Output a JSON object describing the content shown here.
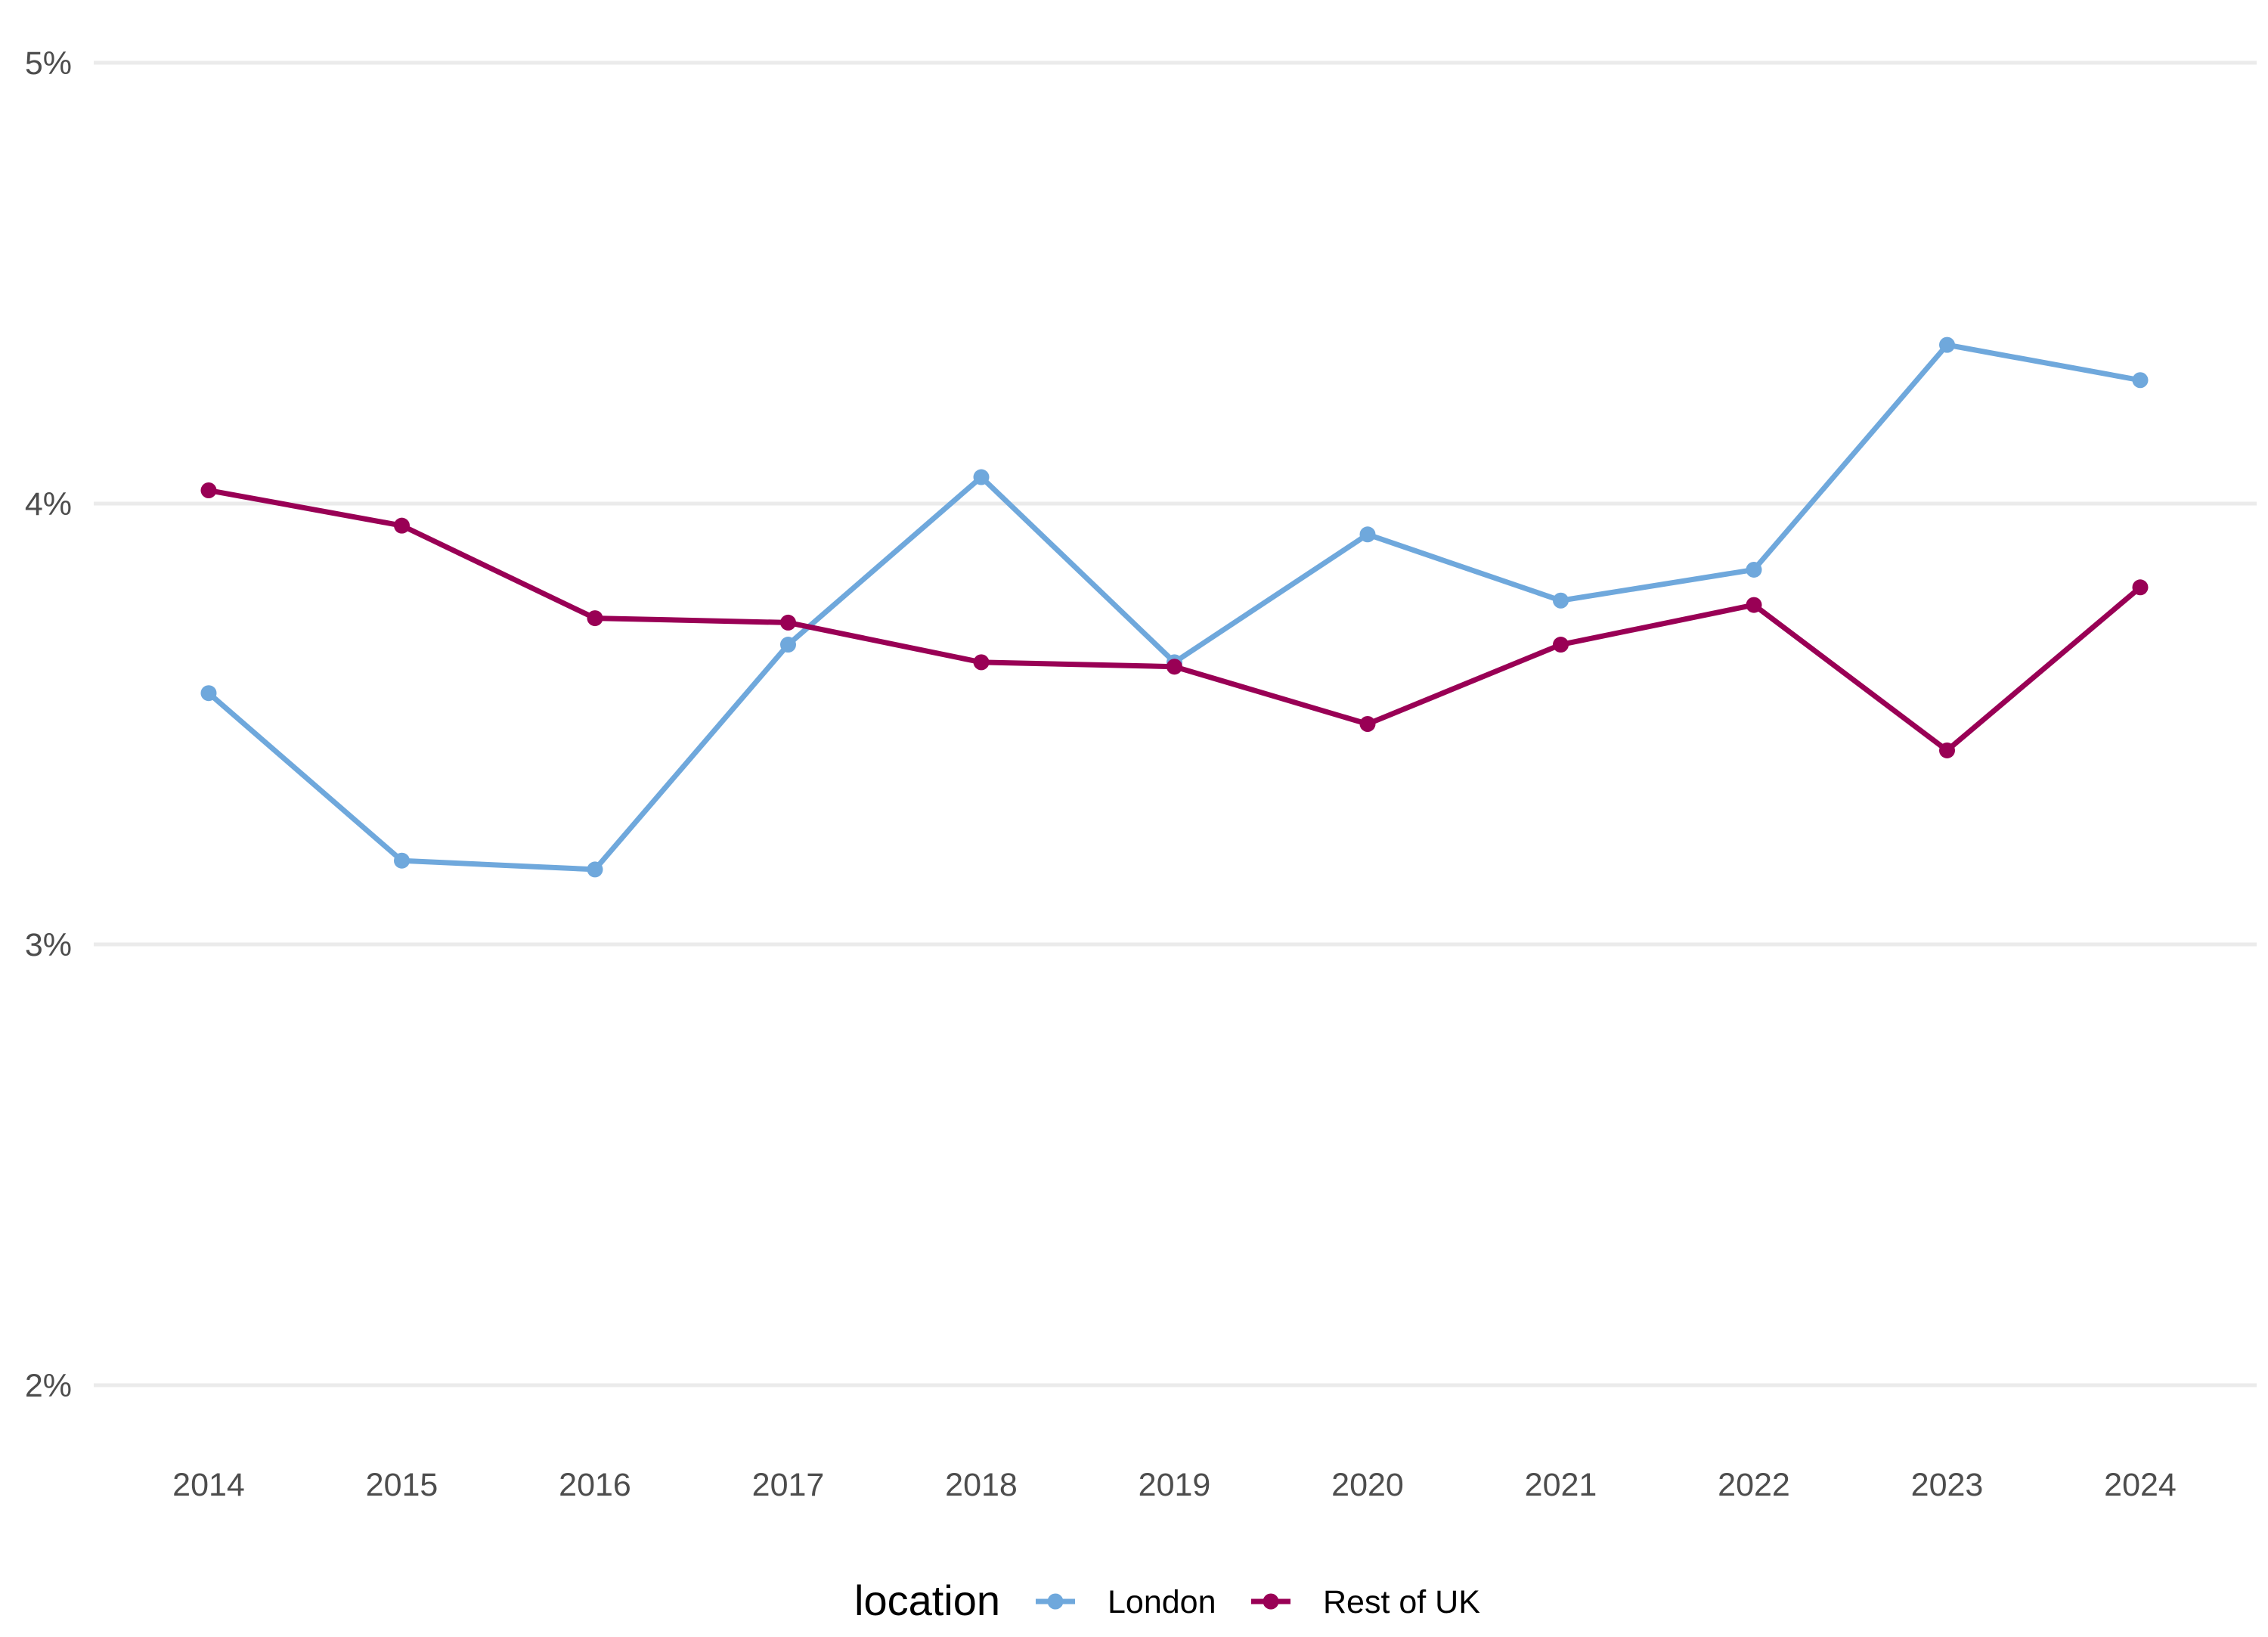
{
  "chart_data": {
    "type": "line",
    "title": "",
    "xlabel": "",
    "ylabel": "",
    "x": [
      2014,
      2015,
      2016,
      2017,
      2018,
      2019,
      2020,
      2021,
      2022,
      2023,
      2024
    ],
    "x_tick_labels": [
      "2014",
      "2015",
      "2016",
      "2017",
      "2018",
      "2019",
      "2020",
      "2021",
      "2022",
      "2023",
      "2024"
    ],
    "ylim": [
      1.8,
      5.0
    ],
    "y_ticks": [
      2,
      3,
      4,
      5
    ],
    "y_tick_labels": [
      "2%",
      "3%",
      "4%",
      "5%"
    ],
    "grid": true,
    "series": [
      {
        "name": "London",
        "color": "#6fa8dc",
        "values": [
          3.57,
          3.19,
          3.17,
          3.68,
          4.06,
          3.64,
          3.93,
          3.78,
          3.85,
          4.36,
          4.28
        ]
      },
      {
        "name": "Rest of UK",
        "color": "#990055",
        "values": [
          4.03,
          3.95,
          3.74,
          3.73,
          3.64,
          3.63,
          3.5,
          3.68,
          3.77,
          3.44,
          3.81
        ]
      }
    ],
    "legend": {
      "title": "location",
      "position": "bottom"
    }
  }
}
